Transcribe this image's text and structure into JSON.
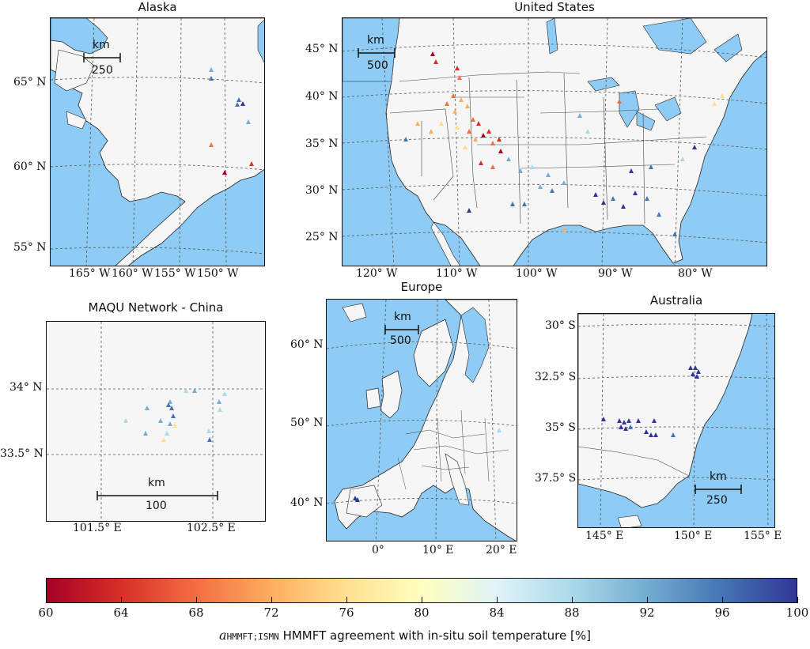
{
  "panels": {
    "alaska": {
      "title": "Alaska",
      "y_ticks": [
        "65° N",
        "60° N",
        "55° N"
      ],
      "x_ticks": [
        "165° W",
        "160° W",
        "155° W",
        "150° W"
      ],
      "scale_unit": "km",
      "scale_value": "250"
    },
    "us": {
      "title": "United States",
      "y_ticks": [
        "45° N",
        "40° N",
        "35° N",
        "30° N",
        "25° N"
      ],
      "x_ticks": [
        "120° W",
        "110° W",
        "100° W",
        "90° W",
        "80° W"
      ],
      "scale_unit": "km",
      "scale_value": "500"
    },
    "maqu": {
      "title": "MAQU Network - China",
      "y_ticks": [
        "34° N",
        "33.5° N"
      ],
      "x_ticks": [
        "101.5° E",
        "102.5° E"
      ],
      "scale_unit": "km",
      "scale_value": "100"
    },
    "europe": {
      "title": "Europe",
      "y_ticks": [
        "60° N",
        "50° N",
        "40° N"
      ],
      "x_ticks": [
        "0°",
        "10° E",
        "20° E"
      ],
      "scale_unit": "km",
      "scale_value": "500"
    },
    "australia": {
      "title": "Australia",
      "y_ticks": [
        "30° S",
        "32.5° S",
        "35° S",
        "37.5° S"
      ],
      "x_ticks": [
        "145° E",
        "150° E",
        "155° E"
      ],
      "scale_unit": "km",
      "scale_value": "250"
    }
  },
  "colorbar": {
    "ticks": [
      "60",
      "64",
      "68",
      "72",
      "76",
      "80",
      "84",
      "88",
      "92",
      "96",
      "100"
    ],
    "min": 60,
    "max": 100,
    "label_symbol": "a",
    "label_subscript": "HMMFT;ISMN",
    "label_text": "HMMFT agreement with in-situ soil temperature [%]",
    "colormap": [
      "#a50026",
      "#d73027",
      "#f46d43",
      "#fdae61",
      "#fee090",
      "#ffffbf",
      "#e0f3f8",
      "#abd9e9",
      "#74add1",
      "#4575b4",
      "#313695"
    ]
  },
  "colors": {
    "ocean": "#8ecbf5",
    "land": "#f6f6f6"
  }
}
